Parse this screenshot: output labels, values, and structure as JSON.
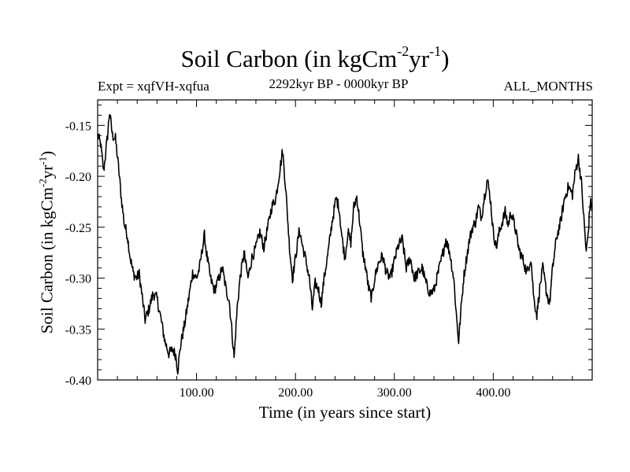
{
  "chart_data": {
    "type": "line",
    "title_main": "Soil Carbon (in kgCm",
    "title_sup1": "-2",
    "title_mid": "yr",
    "title_sup2": "-1",
    "title_end": ")",
    "subtitle_left": "Expt = xqfVH-xqfua",
    "subtitle_center": "2292kyr BP - 0000kyr BP",
    "subtitle_right": "ALL_MONTHS",
    "xlabel": "Time (in years since start)",
    "ylabel_main": "Soil Carbon (in kgCm",
    "ylabel_sup1": "-2",
    "ylabel_mid": "yr",
    "ylabel_sup2": "-1",
    "ylabel_end": ")",
    "xlim": [
      0,
      500
    ],
    "ylim": [
      -0.4,
      -0.125
    ],
    "x_ticks": [
      100,
      200,
      300,
      400
    ],
    "x_tick_labels": [
      "100.00",
      "200.00",
      "300.00",
      "400.00"
    ],
    "y_ticks": [
      -0.4,
      -0.35,
      -0.3,
      -0.25,
      -0.2,
      -0.15
    ],
    "y_tick_labels": [
      "-0.40",
      "-0.35",
      "-0.30",
      "-0.25",
      "-0.20",
      "-0.15"
    ],
    "series": [
      {
        "name": "Soil Carbon",
        "color": "#000000",
        "anchors": [
          [
            0,
            -0.16
          ],
          [
            3,
            -0.168
          ],
          [
            6,
            -0.195
          ],
          [
            8,
            -0.178
          ],
          [
            10,
            -0.16
          ],
          [
            12,
            -0.137
          ],
          [
            15,
            -0.16
          ],
          [
            18,
            -0.163
          ],
          [
            21,
            -0.19
          ],
          [
            24,
            -0.222
          ],
          [
            27,
            -0.247
          ],
          [
            30,
            -0.258
          ],
          [
            33,
            -0.28
          ],
          [
            36,
            -0.295
          ],
          [
            39,
            -0.3
          ],
          [
            42,
            -0.296
          ],
          [
            45,
            -0.318
          ],
          [
            48,
            -0.341
          ],
          [
            52,
            -0.33
          ],
          [
            56,
            -0.315
          ],
          [
            60,
            -0.32
          ],
          [
            64,
            -0.34
          ],
          [
            68,
            -0.362
          ],
          [
            72,
            -0.374
          ],
          [
            76,
            -0.37
          ],
          [
            79,
            -0.376
          ],
          [
            81,
            -0.39
          ],
          [
            84,
            -0.365
          ],
          [
            88,
            -0.345
          ],
          [
            92,
            -0.32
          ],
          [
            96,
            -0.295
          ],
          [
            100,
            -0.3
          ],
          [
            103,
            -0.29
          ],
          [
            106,
            -0.27
          ],
          [
            108,
            -0.258
          ],
          [
            110,
            -0.275
          ],
          [
            114,
            -0.3
          ],
          [
            118,
            -0.312
          ],
          [
            122,
            -0.302
          ],
          [
            126,
            -0.29
          ],
          [
            130,
            -0.312
          ],
          [
            133,
            -0.322
          ],
          [
            136,
            -0.355
          ],
          [
            138,
            -0.378
          ],
          [
            141,
            -0.33
          ],
          [
            144,
            -0.3
          ],
          [
            148,
            -0.275
          ],
          [
            152,
            -0.3
          ],
          [
            156,
            -0.28
          ],
          [
            160,
            -0.27
          ],
          [
            164,
            -0.255
          ],
          [
            168,
            -0.27
          ],
          [
            172,
            -0.25
          ],
          [
            176,
            -0.23
          ],
          [
            180,
            -0.222
          ],
          [
            184,
            -0.195
          ],
          [
            187,
            -0.175
          ],
          [
            190,
            -0.21
          ],
          [
            194,
            -0.27
          ],
          [
            197,
            -0.3
          ],
          [
            200,
            -0.28
          ],
          [
            204,
            -0.252
          ],
          [
            207,
            -0.268
          ],
          [
            210,
            -0.28
          ],
          [
            214,
            -0.3
          ],
          [
            217,
            -0.33
          ],
          [
            220,
            -0.305
          ],
          [
            223,
            -0.31
          ],
          [
            226,
            -0.325
          ],
          [
            229,
            -0.3
          ],
          [
            233,
            -0.275
          ],
          [
            237,
            -0.245
          ],
          [
            241,
            -0.222
          ],
          [
            244,
            -0.23
          ],
          [
            247,
            -0.26
          ],
          [
            250,
            -0.28
          ],
          [
            253,
            -0.255
          ],
          [
            256,
            -0.265
          ],
          [
            259,
            -0.23
          ],
          [
            262,
            -0.22
          ],
          [
            265,
            -0.245
          ],
          [
            268,
            -0.275
          ],
          [
            271,
            -0.29
          ],
          [
            274,
            -0.31
          ],
          [
            277,
            -0.32
          ],
          [
            280,
            -0.3
          ],
          [
            284,
            -0.285
          ],
          [
            288,
            -0.278
          ],
          [
            292,
            -0.295
          ],
          [
            296,
            -0.3
          ],
          [
            300,
            -0.283
          ],
          [
            304,
            -0.268
          ],
          [
            308,
            -0.262
          ],
          [
            312,
            -0.29
          ],
          [
            316,
            -0.28
          ],
          [
            320,
            -0.3
          ],
          [
            324,
            -0.295
          ],
          [
            328,
            -0.29
          ],
          [
            332,
            -0.305
          ],
          [
            336,
            -0.315
          ],
          [
            340,
            -0.312
          ],
          [
            344,
            -0.296
          ],
          [
            348,
            -0.28
          ],
          [
            352,
            -0.262
          ],
          [
            356,
            -0.275
          ],
          [
            360,
            -0.3
          ],
          [
            363,
            -0.34
          ],
          [
            365,
            -0.362
          ],
          [
            367,
            -0.335
          ],
          [
            370,
            -0.3
          ],
          [
            373,
            -0.28
          ],
          [
            376,
            -0.262
          ],
          [
            379,
            -0.25
          ],
          [
            382,
            -0.245
          ],
          [
            385,
            -0.23
          ],
          [
            388,
            -0.24
          ],
          [
            391,
            -0.22
          ],
          [
            394,
            -0.203
          ],
          [
            397,
            -0.222
          ],
          [
            400,
            -0.255
          ],
          [
            403,
            -0.27
          ],
          [
            406,
            -0.255
          ],
          [
            409,
            -0.245
          ],
          [
            412,
            -0.235
          ],
          [
            415,
            -0.248
          ],
          [
            418,
            -0.235
          ],
          [
            422,
            -0.25
          ],
          [
            426,
            -0.272
          ],
          [
            430,
            -0.282
          ],
          [
            434,
            -0.295
          ],
          [
            438,
            -0.28
          ],
          [
            441,
            -0.32
          ],
          [
            444,
            -0.336
          ],
          [
            447,
            -0.31
          ],
          [
            450,
            -0.29
          ],
          [
            454,
            -0.315
          ],
          [
            457,
            -0.325
          ],
          [
            460,
            -0.29
          ],
          [
            464,
            -0.26
          ],
          [
            468,
            -0.245
          ],
          [
            472,
            -0.222
          ],
          [
            476,
            -0.21
          ],
          [
            480,
            -0.218
          ],
          [
            483,
            -0.195
          ],
          [
            486,
            -0.182
          ],
          [
            489,
            -0.205
          ],
          [
            492,
            -0.248
          ],
          [
            494,
            -0.275
          ],
          [
            496,
            -0.255
          ],
          [
            498,
            -0.225
          ],
          [
            500,
            -0.232
          ]
        ]
      }
    ]
  }
}
